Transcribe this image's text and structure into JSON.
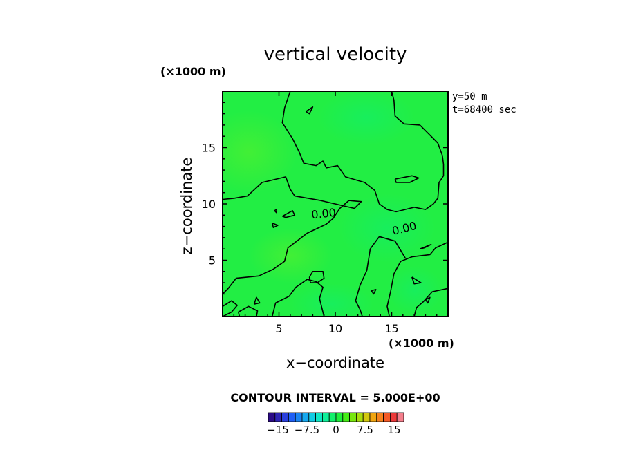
{
  "chart_data": {
    "type": "heatmap",
    "title": "vertical velocity",
    "xlabel": "x−coordinate",
    "ylabel": "z−coordinate",
    "x_unit": "(×1000 m)",
    "y_unit": "(×1000 m)",
    "xlim": [
      0,
      20
    ],
    "ylim": [
      0,
      20
    ],
    "x_ticks": [
      5,
      10,
      15
    ],
    "y_ticks": [
      5,
      10,
      15
    ],
    "x_tick_labels": [
      "5",
      "10",
      "15"
    ],
    "y_tick_labels": [
      "5",
      "10",
      "15"
    ],
    "info_lines": [
      "y=50  m",
      "t=68400 sec"
    ],
    "contour_interval_text": "CONTOUR INTERVAL = 5.000E+00",
    "contour_labels": [
      {
        "text": "0.00",
        "x": 9.0,
        "y": 8.8
      },
      {
        "text": "0.00",
        "x": 16.2,
        "y": 7.5
      }
    ],
    "colorbar": {
      "range": [
        -17.5,
        17.5
      ],
      "step": 2.5,
      "colors": [
        "#2b0b86",
        "#2e24b4",
        "#2a3fdc",
        "#1f5ff5",
        "#1a84f3",
        "#16a8ef",
        "#12cbe3",
        "#10e6c5",
        "#0ff09a",
        "#12f06a",
        "#1fee3a",
        "#45ec16",
        "#78e60e",
        "#a8dc0c",
        "#d2c80e",
        "#f0a510",
        "#f6821c",
        "#f45a26",
        "#ec3a3a",
        "#f47e8c"
      ],
      "tick_labels": [
        "−15",
        "−7.5",
        "0",
        "7.5",
        "15"
      ],
      "tick_values": [
        -15,
        -7.5,
        0,
        7.5,
        15
      ]
    },
    "field_color": "#22ee44",
    "zero_contours": [
      [
        [
          6.0,
          20
        ],
        [
          5.5,
          18.5
        ],
        [
          5.3,
          17.2
        ],
        [
          6.2,
          15.8
        ],
        [
          6.8,
          14.6
        ],
        [
          7.2,
          13.6
        ],
        [
          8.3,
          13.4
        ],
        [
          8.9,
          13.8
        ],
        [
          9.2,
          13.2
        ],
        [
          10.2,
          13.4
        ],
        [
          10.9,
          12.4
        ],
        [
          12.6,
          11.9
        ],
        [
          13.5,
          11.2
        ],
        [
          13.9,
          10.0
        ],
        [
          14.6,
          9.5
        ],
        [
          15.4,
          9.3
        ],
        [
          17.0,
          9.7
        ],
        [
          18.0,
          9.5
        ],
        [
          18.7,
          10.0
        ],
        [
          19.1,
          10.5
        ],
        [
          19.2,
          11.9
        ],
        [
          19.6,
          12.5
        ],
        [
          19.6,
          13.5
        ],
        [
          19.5,
          14.3
        ],
        [
          19.1,
          15.4
        ],
        [
          18.2,
          16.3
        ],
        [
          17.5,
          17.0
        ],
        [
          16.1,
          17.1
        ],
        [
          15.3,
          17.8
        ],
        [
          15.2,
          19.2
        ],
        [
          15.0,
          20
        ]
      ],
      [
        [
          0,
          10.4
        ],
        [
          1.0,
          10.5
        ],
        [
          2.2,
          10.7
        ],
        [
          3.5,
          11.9
        ],
        [
          5.6,
          12.4
        ],
        [
          6.0,
          11.3
        ],
        [
          6.4,
          10.7
        ],
        [
          8.7,
          10.3
        ],
        [
          11.7,
          9.6
        ],
        [
          12.3,
          10.2
        ],
        [
          11.2,
          10.3
        ],
        [
          10.4,
          9.6
        ],
        [
          9.8,
          8.7
        ],
        [
          9.2,
          8.2
        ],
        [
          7.5,
          7.4
        ],
        [
          5.8,
          6.1
        ],
        [
          5.5,
          4.9
        ],
        [
          4.5,
          4.2
        ],
        [
          3.2,
          3.6
        ],
        [
          1.2,
          3.4
        ],
        [
          0.5,
          2.5
        ],
        [
          0,
          2.0
        ]
      ],
      [
        [
          20,
          6.6
        ],
        [
          18.9,
          6.1
        ],
        [
          18.4,
          5.5
        ],
        [
          16.8,
          5.3
        ],
        [
          15.8,
          4.9
        ],
        [
          15.2,
          3.8
        ],
        [
          14.9,
          2.2
        ],
        [
          14.6,
          0.9
        ],
        [
          14.8,
          0
        ]
      ],
      [
        [
          20,
          2.5
        ],
        [
          18.6,
          2.2
        ],
        [
          17.8,
          1.3
        ],
        [
          17.2,
          0.8
        ],
        [
          17.0,
          0
        ]
      ],
      [
        [
          16.2,
          5.2
        ],
        [
          15.3,
          6.7
        ],
        [
          13.9,
          7.1
        ],
        [
          13.1,
          6.0
        ],
        [
          12.8,
          4.1
        ],
        [
          12.2,
          2.8
        ],
        [
          11.8,
          1.4
        ],
        [
          12.2,
          0.6
        ],
        [
          12.4,
          0
        ]
      ],
      [
        [
          9.0,
          0
        ],
        [
          8.6,
          1.6
        ],
        [
          8.9,
          2.6
        ],
        [
          8.3,
          3.1
        ],
        [
          7.5,
          3.3
        ],
        [
          6.5,
          2.6
        ],
        [
          5.9,
          1.8
        ],
        [
          4.7,
          1.2
        ],
        [
          4.4,
          0
        ]
      ],
      [
        [
          0,
          0.9
        ],
        [
          0.8,
          1.4
        ],
        [
          1.3,
          1.0
        ],
        [
          0.8,
          0.4
        ],
        [
          0,
          0
        ]
      ],
      [
        [
          1.5,
          0
        ],
        [
          1.4,
          0.4
        ],
        [
          2.3,
          0.9
        ],
        [
          3.1,
          0.5
        ],
        [
          3.0,
          0
        ]
      ],
      [
        [
          7.7,
          3.5
        ],
        [
          8.0,
          4.0
        ],
        [
          8.9,
          4.0
        ],
        [
          9.0,
          3.4
        ],
        [
          8.4,
          3.0
        ],
        [
          7.8,
          3.0
        ],
        [
          7.7,
          3.5
        ]
      ],
      [
        [
          5.3,
          8.9
        ],
        [
          6.2,
          9.4
        ],
        [
          6.4,
          9.0
        ],
        [
          5.6,
          8.8
        ],
        [
          5.3,
          8.9
        ]
      ],
      [
        [
          4.8,
          9.2
        ],
        [
          4.6,
          9.4
        ],
        [
          4.8,
          9.5
        ],
        [
          4.8,
          9.2
        ]
      ],
      [
        [
          4.4,
          8.3
        ],
        [
          4.9,
          8.1
        ],
        [
          4.5,
          7.9
        ],
        [
          4.4,
          8.3
        ]
      ],
      [
        [
          15.3,
          12.2
        ],
        [
          16.8,
          12.5
        ],
        [
          17.4,
          12.3
        ],
        [
          16.6,
          11.9
        ],
        [
          15.4,
          11.9
        ],
        [
          15.3,
          12.2
        ]
      ],
      [
        [
          7.4,
          18.2
        ],
        [
          8.0,
          18.6
        ],
        [
          7.7,
          18.0
        ],
        [
          7.4,
          18.2
        ]
      ],
      [
        [
          17.5,
          6.0
        ],
        [
          18.5,
          6.4
        ],
        [
          17.9,
          6.1
        ],
        [
          17.5,
          6.0
        ]
      ],
      [
        [
          16.8,
          3.5
        ],
        [
          17.6,
          3.0
        ],
        [
          17.0,
          2.9
        ],
        [
          16.8,
          3.5
        ]
      ],
      [
        [
          18.0,
          1.5
        ],
        [
          18.4,
          1.7
        ],
        [
          18.2,
          1.2
        ],
        [
          18.0,
          1.5
        ]
      ],
      [
        [
          2.8,
          1.1
        ],
        [
          3.0,
          1.7
        ],
        [
          3.3,
          1.2
        ],
        [
          2.8,
          1.1
        ]
      ],
      [
        [
          13.2,
          2.3
        ],
        [
          13.6,
          2.4
        ],
        [
          13.4,
          2.0
        ],
        [
          13.2,
          2.3
        ]
      ]
    ]
  }
}
